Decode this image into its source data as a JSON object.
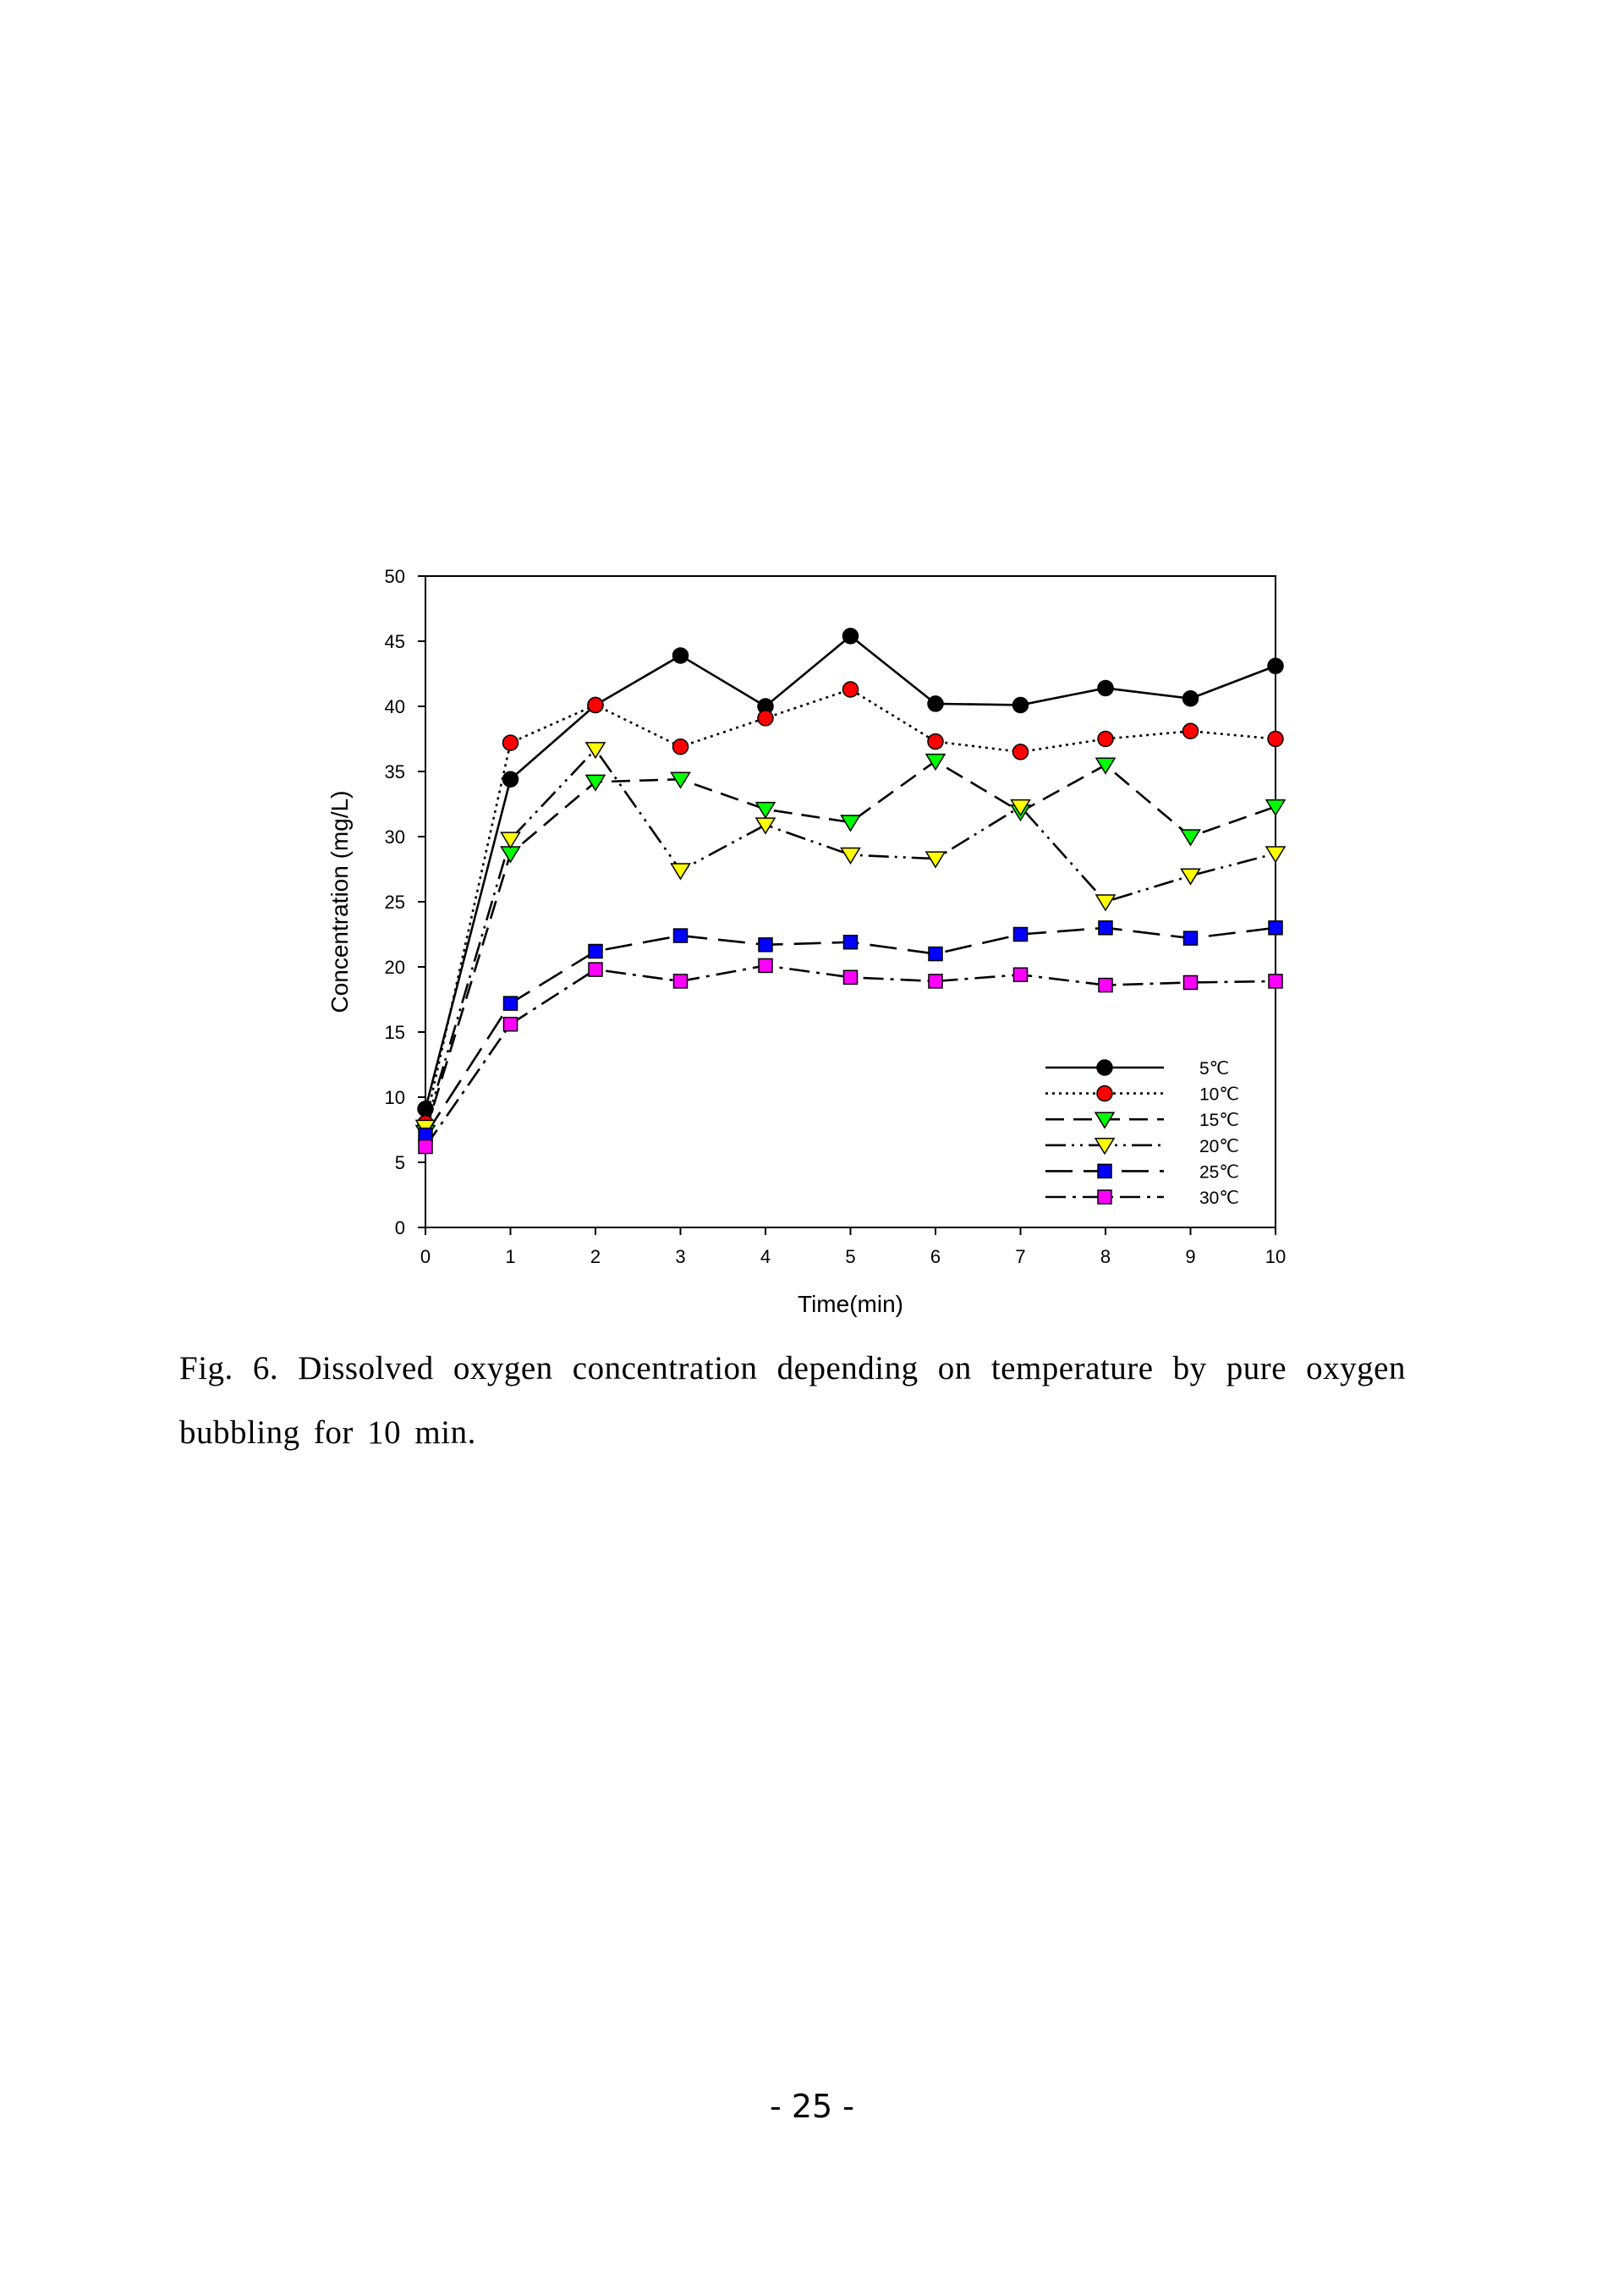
{
  "chart_data": {
    "type": "line",
    "xlabel": "Time(min)",
    "ylabel": "Concentration (mg/L)",
    "xlim": [
      0,
      10
    ],
    "ylim": [
      0,
      50
    ],
    "xticks": [
      0,
      1,
      2,
      3,
      4,
      5,
      6,
      7,
      8,
      9,
      10
    ],
    "yticks": [
      0,
      5,
      10,
      15,
      20,
      25,
      30,
      35,
      40,
      45,
      50
    ],
    "grid": false,
    "legend_position": "bottom-right",
    "x": [
      0,
      1,
      2,
      3,
      4,
      5,
      6,
      7,
      8,
      9,
      10
    ],
    "series": [
      {
        "name": "5℃",
        "marker": "circle",
        "color": "#000000",
        "dash": "solid",
        "values": [
          9.1,
          34.4,
          40.1,
          43.9,
          40.0,
          45.4,
          40.2,
          40.1,
          41.4,
          40.6,
          43.1
        ]
      },
      {
        "name": "10℃",
        "marker": "circle",
        "color": "#ff0000",
        "dash": "dotted",
        "values": [
          8.0,
          37.2,
          40.1,
          36.9,
          39.1,
          41.3,
          37.3,
          36.5,
          37.5,
          38.1,
          37.5
        ]
      },
      {
        "name": "15℃",
        "marker": "triangle-down",
        "color": "#00ff00",
        "dash": "dashed",
        "values": [
          7.3,
          28.7,
          34.2,
          34.4,
          32.1,
          31.1,
          35.8,
          31.9,
          35.5,
          30.0,
          32.3
        ]
      },
      {
        "name": "20℃",
        "marker": "triangle-down",
        "color": "#ffff00",
        "dash": "dashdotdot",
        "values": [
          7.7,
          29.8,
          36.7,
          27.4,
          30.9,
          28.6,
          28.3,
          32.3,
          25.0,
          27.0,
          28.7
        ]
      },
      {
        "name": "25℃",
        "marker": "square",
        "color": "#0000ff",
        "dash": "longdash",
        "values": [
          7.1,
          17.2,
          21.2,
          22.4,
          21.7,
          21.9,
          21.0,
          22.5,
          23.0,
          22.2,
          23.0
        ]
      },
      {
        "name": "30℃",
        "marker": "square",
        "color": "#ff00ff",
        "dash": "dashdot",
        "values": [
          6.2,
          15.6,
          19.8,
          18.9,
          20.1,
          19.2,
          18.9,
          19.4,
          18.6,
          18.8,
          18.9
        ]
      }
    ]
  },
  "caption": "Fig. 6. Dissolved oxygen concentration depending on temperature by pure oxygen bubbling for 10 min.",
  "page_number": "- 25 -"
}
